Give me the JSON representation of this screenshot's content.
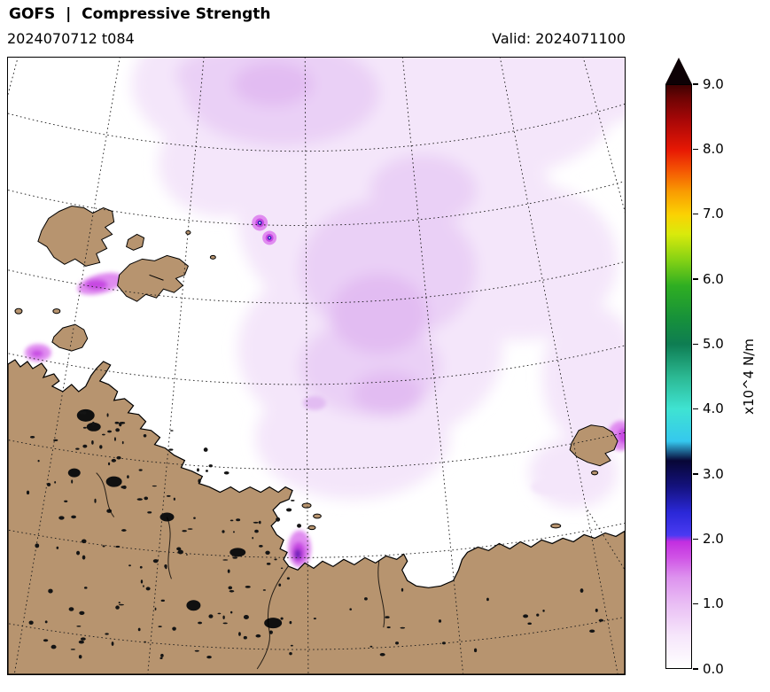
{
  "header": {
    "title": "GOFS  |  Compressive Strength",
    "run": "2024070712 t084",
    "valid": "Valid: 2024071100"
  },
  "colorbar": {
    "label": "x10^4 N/m",
    "ticks": [
      "0.0",
      "1.0",
      "2.0",
      "3.0",
      "4.0",
      "5.0",
      "6.0",
      "7.0",
      "8.0",
      "9.0"
    ],
    "range": [
      0,
      9
    ],
    "arrow_color": "#0d0105",
    "stops": [
      {
        "v": 0.0,
        "c": "#ffffff"
      },
      {
        "v": 0.5,
        "c": "#f6e6fb"
      },
      {
        "v": 1.0,
        "c": "#e9bdf4"
      },
      {
        "v": 1.4,
        "c": "#dd92ee"
      },
      {
        "v": 1.7,
        "c": "#d055e6"
      },
      {
        "v": 1.95,
        "c": "#c32ee0"
      },
      {
        "v": 2.05,
        "c": "#4a3af2"
      },
      {
        "v": 2.4,
        "c": "#2b28d8"
      },
      {
        "v": 2.8,
        "c": "#14127e"
      },
      {
        "v": 3.2,
        "c": "#070636"
      },
      {
        "v": 3.5,
        "c": "#35c8ee"
      },
      {
        "v": 4.0,
        "c": "#3fe3d2"
      },
      {
        "v": 4.5,
        "c": "#2bb892"
      },
      {
        "v": 5.0,
        "c": "#0e7d52"
      },
      {
        "v": 5.4,
        "c": "#17913a"
      },
      {
        "v": 5.9,
        "c": "#2fae22"
      },
      {
        "v": 6.3,
        "c": "#85d214"
      },
      {
        "v": 6.7,
        "c": "#d9ea0c"
      },
      {
        "v": 7.0,
        "c": "#fbd203"
      },
      {
        "v": 7.35,
        "c": "#f99c02"
      },
      {
        "v": 7.7,
        "c": "#f45203"
      },
      {
        "v": 8.0,
        "c": "#e71804"
      },
      {
        "v": 8.45,
        "c": "#a90707"
      },
      {
        "v": 8.8,
        "c": "#6e0404"
      },
      {
        "v": 9.0,
        "c": "#3f0202"
      }
    ]
  },
  "map": {
    "land_color": "#b7946f",
    "ocean_color": "#ffffff",
    "coast_color": "#000000",
    "graticule_color": "#1a1a1a",
    "ice_colors": {
      "pale": "#f4e6fa",
      "light": "#ead0f6",
      "medium": "#e2bcf2",
      "vivid": "#e08cf0",
      "deep": "#c74ae2",
      "core": "#6a1db8"
    }
  },
  "chart_data": {
    "type": "heatmap",
    "title": "GOFS | Compressive Strength",
    "units": "x10^4 N/m",
    "colorbar_range": [
      0,
      9
    ],
    "colorbar_ticks": [
      0,
      1,
      2,
      3,
      4,
      5,
      6,
      7,
      8,
      9
    ],
    "description": "Polar-projection sea-ice compressive strength field; open water mostly 0, broad pale-violet ice field ~0.3-1.0 x10^4 N/m over the central basin, small localized maxima ~1-3 near island coasts and along the mainland shore."
  }
}
